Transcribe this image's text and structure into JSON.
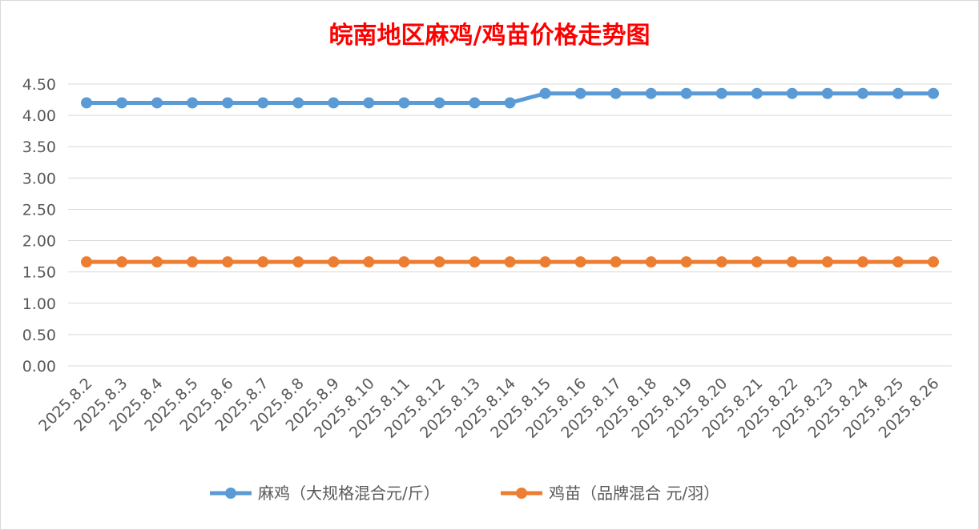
{
  "chart_data": {
    "type": "line",
    "title": "皖南地区麻鸡/鸡苗价格走势图",
    "xlabel": "",
    "ylabel": "",
    "categories": [
      "2025.8.2",
      "2025.8.3",
      "2025.8.4",
      "2025.8.5",
      "2025.8.6",
      "2025.8.7",
      "2025.8.8",
      "2025.8.9",
      "2025.8.10",
      "2025.8.11",
      "2025.8.12",
      "2025.8.13",
      "2025.8.14",
      "2025.8.15",
      "2025.8.16",
      "2025.8.17",
      "2025.8.18",
      "2025.8.19",
      "2025.8.20",
      "2025.8.21",
      "2025.8.22",
      "2025.8.23",
      "2025.8.24",
      "2025.8.25",
      "2025.8.26"
    ],
    "series": [
      {
        "name": "麻鸡（大规格混合元/斤）",
        "color": "#5b9bd5",
        "values": [
          4.2,
          4.2,
          4.2,
          4.2,
          4.2,
          4.2,
          4.2,
          4.2,
          4.2,
          4.2,
          4.2,
          4.2,
          4.2,
          4.35,
          4.35,
          4.35,
          4.35,
          4.35,
          4.35,
          4.35,
          4.35,
          4.35,
          4.35,
          4.35,
          4.35
        ]
      },
      {
        "name": "鸡苗（品牌混合 元/羽）",
        "color": "#ed7d31",
        "values": [
          1.66,
          1.66,
          1.66,
          1.66,
          1.66,
          1.66,
          1.66,
          1.66,
          1.66,
          1.66,
          1.66,
          1.66,
          1.66,
          1.66,
          1.66,
          1.66,
          1.66,
          1.66,
          1.66,
          1.66,
          1.66,
          1.66,
          1.66,
          1.66,
          1.66
        ]
      }
    ],
    "ylim": [
      0,
      4.5
    ],
    "yticks": [
      "0.00",
      "0.50",
      "1.00",
      "1.50",
      "2.00",
      "2.50",
      "3.00",
      "3.50",
      "4.00",
      "4.50"
    ],
    "grid": true,
    "legend_position": "bottom",
    "title_color": "#ff0000"
  }
}
